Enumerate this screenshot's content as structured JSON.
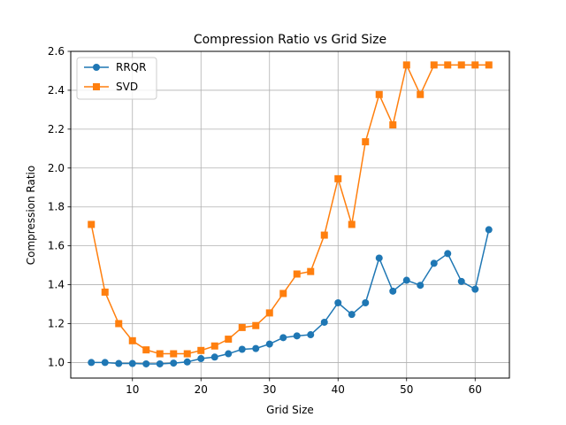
{
  "chart_data": {
    "type": "line",
    "title": "Compression Ratio vs Grid Size",
    "xlabel": "Grid Size",
    "ylabel": "Compression Ratio",
    "xlim": [
      1,
      65
    ],
    "ylim": [
      0.92,
      2.6
    ],
    "xticks": [
      10,
      20,
      30,
      40,
      50,
      60
    ],
    "yticks": [
      1.0,
      1.2,
      1.4,
      1.6,
      1.8,
      2.0,
      2.2,
      2.4,
      2.6
    ],
    "xtick_labels": [
      "10",
      "20",
      "30",
      "40",
      "50",
      "60"
    ],
    "ytick_labels": [
      "1.0",
      "1.2",
      "1.4",
      "1.6",
      "1.8",
      "2.0",
      "2.2",
      "2.4",
      "2.6"
    ],
    "grid": true,
    "legend_position": "top-left",
    "x": [
      4,
      6,
      8,
      10,
      12,
      14,
      16,
      18,
      20,
      22,
      24,
      26,
      28,
      30,
      32,
      34,
      36,
      38,
      40,
      42,
      44,
      46,
      48,
      50,
      52,
      54,
      56,
      58,
      60,
      62
    ],
    "series": [
      {
        "name": "RRQR",
        "color": "#1f77b4",
        "marker": "circle",
        "values": [
          1.0,
          1.0,
          0.995,
          0.995,
          0.993,
          0.993,
          0.997,
          1.003,
          1.02,
          1.028,
          1.045,
          1.068,
          1.072,
          1.095,
          1.128,
          1.137,
          1.143,
          1.207,
          1.307,
          1.247,
          1.307,
          1.537,
          1.367,
          1.423,
          1.397,
          1.51,
          1.56,
          1.417,
          1.377,
          1.683
        ]
      },
      {
        "name": "SVD",
        "color": "#ff7f0e",
        "marker": "square",
        "values": [
          1.71,
          1.362,
          1.2,
          1.112,
          1.065,
          1.045,
          1.045,
          1.045,
          1.062,
          1.085,
          1.12,
          1.18,
          1.19,
          1.255,
          1.355,
          1.455,
          1.468,
          1.655,
          1.945,
          1.71,
          2.135,
          2.378,
          2.222,
          2.53,
          2.378,
          2.53,
          2.53,
          2.53,
          2.53,
          2.53
        ]
      }
    ]
  }
}
